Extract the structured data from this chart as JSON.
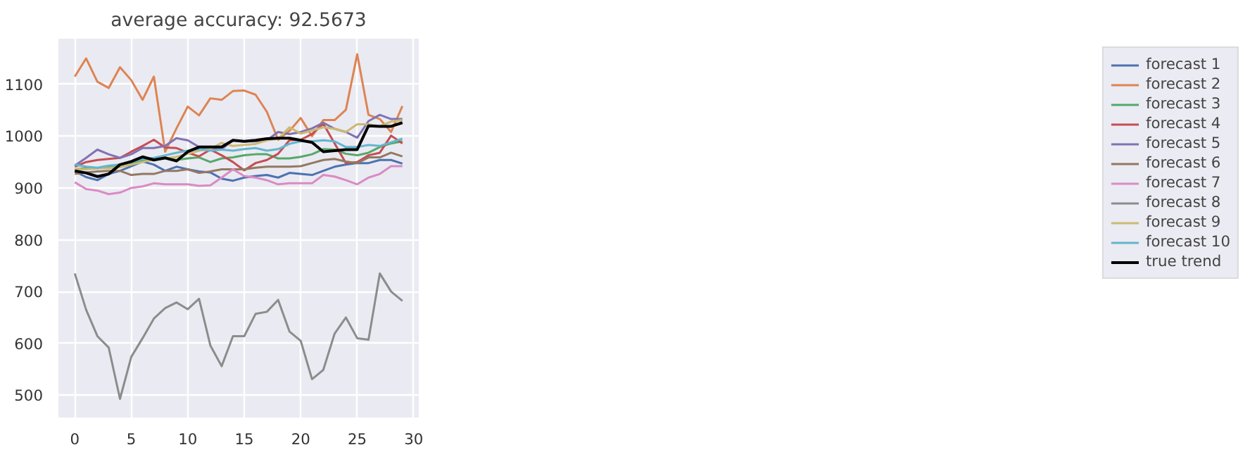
{
  "chart_data": {
    "type": "line",
    "title": "average accuracy: 92.5673",
    "x": [
      0,
      1,
      2,
      3,
      4,
      5,
      6,
      7,
      8,
      9,
      10,
      11,
      12,
      13,
      14,
      15,
      16,
      17,
      18,
      19,
      20,
      21,
      22,
      23,
      24,
      25,
      26,
      27,
      28,
      29
    ],
    "series": [
      {
        "name": "forecast 1",
        "color": "#4c72b0",
        "values": [
          932,
          921,
          915,
          927,
          933,
          942,
          951,
          945,
          933,
          941,
          936,
          932,
          930,
          918,
          914,
          920,
          923,
          925,
          920,
          929,
          927,
          925,
          933,
          941,
          945,
          948,
          948,
          954,
          954,
          947
        ]
      },
      {
        "name": "forecast 2",
        "color": "#dd8452",
        "values": [
          1115,
          1150,
          1105,
          1093,
          1133,
          1108,
          1070,
          1115,
          970,
          1015,
          1057,
          1040,
          1073,
          1070,
          1087,
          1088,
          1080,
          1047,
          993,
          1010,
          1035,
          1000,
          1031,
          1031,
          1051,
          1158,
          1041,
          1033,
          1008,
          1058
        ]
      },
      {
        "name": "forecast 3",
        "color": "#55a868",
        "values": [
          936,
          938,
          938,
          941,
          945,
          948,
          954,
          954,
          958,
          954,
          957,
          959,
          950,
          957,
          959,
          963,
          965,
          965,
          957,
          957,
          960,
          965,
          975,
          974,
          966,
          963,
          968,
          979,
          986,
          990
        ]
      },
      {
        "name": "forecast 4",
        "color": "#c44e52",
        "values": [
          941,
          950,
          954,
          956,
          958,
          970,
          981,
          993,
          978,
          977,
          968,
          961,
          974,
          963,
          950,
          934,
          948,
          954,
          966,
          992,
          993,
          1004,
          1024,
          986,
          948,
          950,
          963,
          968,
          1001,
          986
        ]
      },
      {
        "name": "forecast 5",
        "color": "#8172b3",
        "values": [
          943,
          958,
          974,
          965,
          958,
          965,
          977,
          977,
          981,
          996,
          992,
          979,
          975,
          975,
          992,
          990,
          990,
          992,
          1008,
          1004,
          1008,
          1015,
          1026,
          1014,
          1008,
          997,
          1029,
          1041,
          1033,
          1033
        ]
      },
      {
        "name": "forecast 6",
        "color": "#937860",
        "values": [
          927,
          930,
          932,
          933,
          933,
          925,
          927,
          927,
          933,
          933,
          936,
          929,
          932,
          936,
          936,
          936,
          939,
          941,
          941,
          941,
          942,
          948,
          954,
          956,
          951,
          948,
          959,
          959,
          968,
          961
        ]
      },
      {
        "name": "forecast 7",
        "color": "#da8bc3",
        "values": [
          911,
          898,
          895,
          888,
          891,
          900,
          903,
          909,
          907,
          907,
          907,
          904,
          905,
          920,
          936,
          923,
          920,
          915,
          907,
          909,
          909,
          909,
          925,
          922,
          915,
          907,
          920,
          927,
          942,
          942
        ]
      },
      {
        "name": "forecast 8",
        "color": "#8c8c8c",
        "values": [
          735,
          665,
          614,
          592,
          493,
          574,
          610,
          648,
          668,
          679,
          666,
          686,
          596,
          556,
          614,
          614,
          657,
          661,
          684,
          623,
          605,
          531,
          549,
          619,
          650,
          610,
          607,
          735,
          700,
          682
        ]
      },
      {
        "name": "forecast 9",
        "color": "#ccb974",
        "values": [
          936,
          936,
          938,
          938,
          940,
          945,
          950,
          955,
          957,
          960,
          966,
          972,
          975,
          987,
          981,
          983,
          985,
          992,
          995,
          1017,
          1005,
          1011,
          1017,
          1014,
          1008,
          1023,
          1023,
          1019,
          1028,
          1031
        ]
      },
      {
        "name": "forecast 10",
        "color": "#64b5cd",
        "values": [
          945,
          941,
          939,
          943,
          945,
          950,
          956,
          958,
          963,
          968,
          972,
          975,
          972,
          974,
          972,
          975,
          977,
          972,
          975,
          985,
          990,
          990,
          992,
          990,
          979,
          979,
          983,
          981,
          988,
          995
        ]
      },
      {
        "name": "true trend",
        "color": "#000000",
        "values": [
          933,
          929,
          922,
          927,
          945,
          951,
          960,
          954,
          958,
          952,
          970,
          979,
          979,
          979,
          992,
          990,
          992,
          995,
          996,
          996,
          992,
          988,
          970,
          972,
          974,
          974,
          1020,
          1019,
          1019,
          1026
        ]
      }
    ],
    "xlim": [
      -1.45,
      30.45
    ],
    "ylim": [
      457,
      1188
    ],
    "xticks": [
      0,
      5,
      10,
      15,
      20,
      25,
      30
    ],
    "yticks": [
      500,
      600,
      700,
      800,
      900,
      1000,
      1100
    ],
    "grid": true,
    "legend": "right"
  }
}
